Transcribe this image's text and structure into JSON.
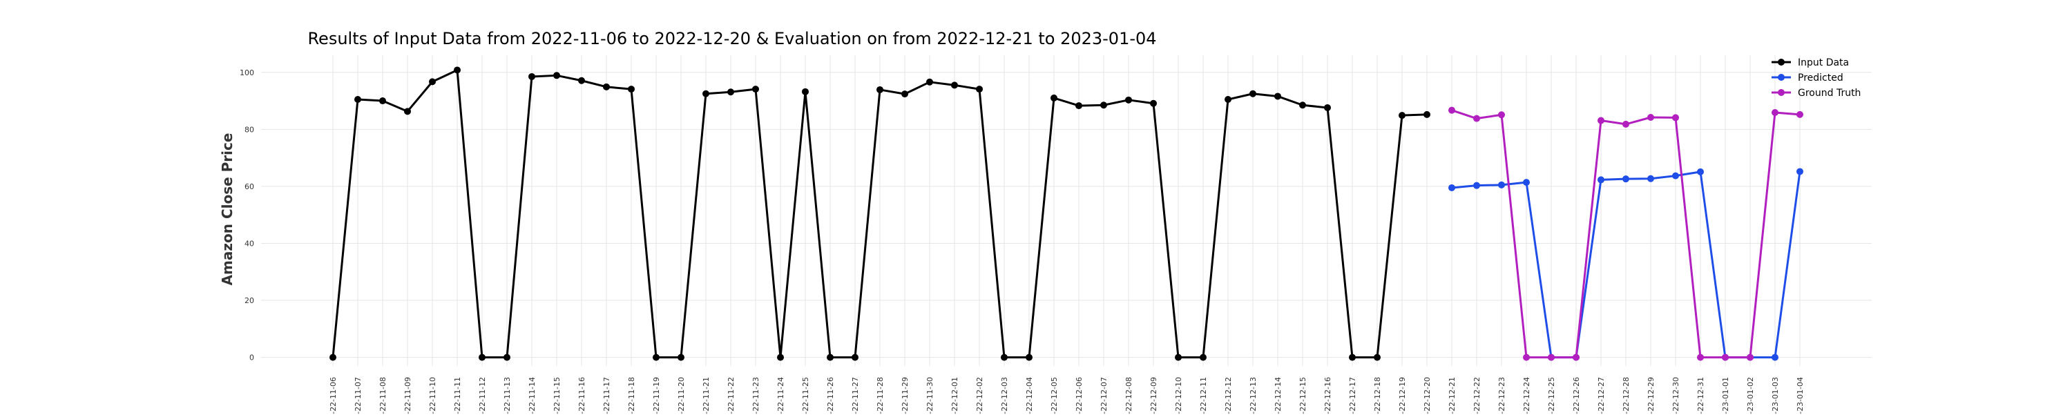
{
  "chart_data": {
    "type": "line",
    "title": "Results of Input Data from 2022-11-06 to 2022-12-20 & Evaluation on from 2022-12-21 to 2023-01-04",
    "xlabel": "",
    "ylabel": "Amazon Close Price",
    "ylim": [
      -3,
      106
    ],
    "yticks": [
      0,
      20,
      40,
      60,
      80,
      100
    ],
    "grid": true,
    "legend_position": "top-right",
    "categories": [
      "2022-11-06",
      "2022-11-07",
      "2022-11-08",
      "2022-11-09",
      "2022-11-10",
      "2022-11-11",
      "2022-11-12",
      "2022-11-13",
      "2022-11-14",
      "2022-11-15",
      "2022-11-16",
      "2022-11-17",
      "2022-11-18",
      "2022-11-19",
      "2022-11-20",
      "2022-11-21",
      "2022-11-22",
      "2022-11-23",
      "2022-11-24",
      "2022-11-25",
      "2022-11-26",
      "2022-11-27",
      "2022-11-28",
      "2022-11-29",
      "2022-11-30",
      "2022-12-01",
      "2022-12-02",
      "2022-12-03",
      "2022-12-04",
      "2022-12-05",
      "2022-12-06",
      "2022-12-07",
      "2022-12-08",
      "2022-12-09",
      "2022-12-10",
      "2022-12-11",
      "2022-12-12",
      "2022-12-13",
      "2022-12-14",
      "2022-12-15",
      "2022-12-16",
      "2022-12-17",
      "2022-12-18",
      "2022-12-19",
      "2022-12-20",
      "2022-12-21",
      "2022-12-22",
      "2022-12-23",
      "2022-12-24",
      "2022-12-25",
      "2022-12-26",
      "2022-12-27",
      "2022-12-28",
      "2022-12-29",
      "2022-12-30",
      "2022-12-31",
      "2023-01-01",
      "2023-01-02",
      "2023-01-03",
      "2023-01-04"
    ],
    "tick_labels": [
      "-22-11-06",
      "-22-11-07",
      "-22-11-08",
      "-22-11-09",
      "-22-11-10",
      "-22-11-11",
      "-22-11-12",
      "-22-11-13",
      "-22-11-14",
      "-22-11-15",
      "-22-11-16",
      "-22-11-17",
      "-22-11-18",
      "-22-11-19",
      "-22-11-20",
      "-22-11-21",
      "-22-11-22",
      "-22-11-23",
      "-22-11-24",
      "-22-11-25",
      "-22-11-26",
      "-22-11-27",
      "-22-11-28",
      "-22-11-29",
      "-22-11-30",
      "-22-12-01",
      "-22-12-02",
      "-22-12-03",
      "-22-12-04",
      "-22-12-05",
      "-22-12-06",
      "-22-12-07",
      "-22-12-08",
      "-22-12-09",
      "-22-12-10",
      "-22-12-11",
      "-22-12-12",
      "-22-12-13",
      "-22-12-14",
      "-22-12-15",
      "-22-12-16",
      "-22-12-17",
      "-22-12-18",
      "-22-12-19",
      "-22-12-20",
      "-22-12-21",
      "-22-12-22",
      "-22-12-23",
      "-22-12-24",
      "-22-12-25",
      "-22-12-26",
      "-22-12-27",
      "-22-12-28",
      "-22-12-29",
      "-22-12-30",
      "-22-12-31",
      "-23-01-01",
      "-23-01-02",
      "-23-01-03",
      "-23-01-04"
    ],
    "series": [
      {
        "name": "Input Data",
        "color": "#000000",
        "x": [
          "2022-11-06",
          "2022-11-07",
          "2022-11-08",
          "2022-11-09",
          "2022-11-10",
          "2022-11-11",
          "2022-11-12",
          "2022-11-13",
          "2022-11-14",
          "2022-11-15",
          "2022-11-16",
          "2022-11-17",
          "2022-11-18",
          "2022-11-19",
          "2022-11-20",
          "2022-11-21",
          "2022-11-22",
          "2022-11-23",
          "2022-11-24",
          "2022-11-25",
          "2022-11-26",
          "2022-11-27",
          "2022-11-28",
          "2022-11-29",
          "2022-11-30",
          "2022-12-01",
          "2022-12-02",
          "2022-12-03",
          "2022-12-04",
          "2022-12-05",
          "2022-12-06",
          "2022-12-07",
          "2022-12-08",
          "2022-12-09",
          "2022-12-10",
          "2022-12-11",
          "2022-12-12",
          "2022-12-13",
          "2022-12-14",
          "2022-12-15",
          "2022-12-16",
          "2022-12-17",
          "2022-12-18",
          "2022-12-19",
          "2022-12-20"
        ],
        "values": [
          0,
          90.5,
          90.0,
          86.3,
          96.7,
          100.8,
          0,
          0,
          98.5,
          98.9,
          97.1,
          94.9,
          94.1,
          0,
          0,
          92.5,
          93.1,
          94.1,
          0,
          93.2,
          0,
          0,
          93.9,
          92.4,
          96.6,
          95.5,
          94.1,
          0,
          0,
          91.0,
          88.3,
          88.5,
          90.3,
          89.1,
          0,
          0,
          90.5,
          92.5,
          91.6,
          88.5,
          87.6,
          0,
          0,
          84.9,
          85.2
        ]
      },
      {
        "name": "Predicted",
        "color": "#1f4de8",
        "x": [
          "2022-12-21",
          "2022-12-22",
          "2022-12-23",
          "2022-12-24",
          "2022-12-25",
          "2022-12-26",
          "2022-12-27",
          "2022-12-28",
          "2022-12-29",
          "2022-12-30",
          "2022-12-31",
          "2023-01-01",
          "2023-01-02",
          "2023-01-03",
          "2023-01-04"
        ],
        "values": [
          59.5,
          60.3,
          60.5,
          61.4,
          0,
          0,
          62.3,
          62.6,
          62.7,
          63.7,
          65.1,
          0,
          0,
          0,
          65.2
        ]
      },
      {
        "name": "Ground Truth",
        "color": "#b21fbf",
        "x": [
          "2022-12-21",
          "2022-12-22",
          "2022-12-23",
          "2022-12-24",
          "2022-12-25",
          "2022-12-26",
          "2022-12-27",
          "2022-12-28",
          "2022-12-29",
          "2022-12-30",
          "2022-12-31",
          "2023-01-01",
          "2023-01-02",
          "2023-01-03",
          "2023-01-04"
        ],
        "values": [
          86.7,
          83.8,
          85.1,
          0,
          0,
          0,
          83.1,
          81.8,
          84.2,
          84.1,
          0,
          0,
          0,
          85.9,
          85.2
        ]
      }
    ]
  }
}
